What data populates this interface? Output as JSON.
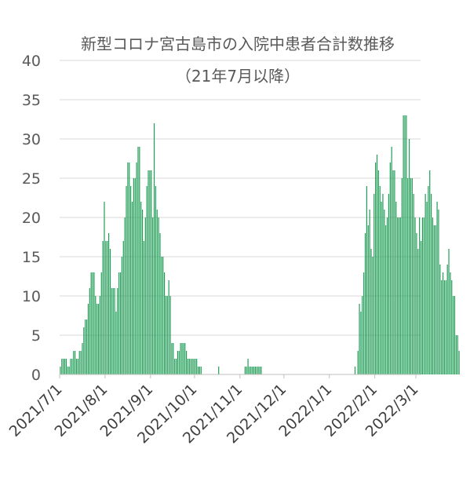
{
  "chart_data": {
    "type": "bar",
    "title": "新型コロナ宮古島市の入院中患者合計数推移",
    "subtitle": "（21年7月以降）",
    "xlabel": "",
    "ylabel": "",
    "ylim": [
      0,
      40
    ],
    "yticks": [
      "0",
      "5",
      "10",
      "15",
      "20",
      "25",
      "30",
      "35",
      "40"
    ],
    "grid": true,
    "legend": "none",
    "color": "#1a9a52",
    "start_date": "2021-07-01",
    "xticks": [
      {
        "date": "2021-07-01",
        "label": "2021/7/1"
      },
      {
        "date": "2021-08-01",
        "label": "2021/8/1"
      },
      {
        "date": "2021-09-01",
        "label": "2021/9/1"
      },
      {
        "date": "2021-10-01",
        "label": "2021/10/1"
      },
      {
        "date": "2021-11-01",
        "label": "2021/11/1"
      },
      {
        "date": "2021-12-01",
        "label": "2021/12/1"
      },
      {
        "date": "2022-01-01",
        "label": "2022/1/1"
      },
      {
        "date": "2022-02-01",
        "label": "2022/2/1"
      },
      {
        "date": "2022-03-01",
        "label": "2022/3/1"
      }
    ],
    "values": [
      1,
      2,
      2,
      2,
      2,
      1,
      1,
      2,
      2,
      3,
      3,
      2,
      2,
      3,
      3,
      4,
      6,
      7,
      7,
      9,
      11,
      13,
      13,
      13,
      10,
      9,
      9,
      10,
      13,
      17,
      22,
      17,
      17,
      18,
      16,
      11,
      11,
      11,
      8,
      11,
      13,
      13,
      15,
      17,
      20,
      24,
      27,
      27,
      24,
      22,
      25,
      25,
      27,
      29,
      29,
      22,
      21,
      17,
      20,
      24,
      26,
      26,
      26,
      20,
      32,
      24,
      21,
      20,
      18,
      15,
      15,
      13,
      10,
      10,
      12,
      10,
      4,
      4,
      2,
      2,
      3,
      3,
      4,
      4,
      4,
      4,
      3,
      2,
      2,
      2,
      2,
      2,
      2,
      2,
      1,
      1,
      1,
      0,
      0,
      0,
      0,
      0,
      0,
      0,
      0,
      0,
      0,
      0,
      1,
      0,
      0,
      0,
      0,
      0,
      0,
      0,
      0,
      0,
      0,
      0,
      0,
      0,
      0,
      0,
      0,
      0,
      1,
      1,
      2,
      1,
      1,
      1,
      1,
      1,
      1,
      1,
      1,
      1,
      0,
      0,
      0,
      0,
      0,
      0,
      0,
      0,
      0,
      0,
      0,
      0,
      0,
      0,
      0,
      0,
      0,
      0,
      0,
      0,
      0,
      0,
      0,
      0,
      0,
      0,
      0,
      0,
      0,
      0,
      0,
      0,
      0,
      0,
      0,
      0,
      0,
      0,
      0,
      0,
      0,
      0,
      0,
      0,
      0,
      0,
      0,
      0,
      0,
      0,
      0,
      0,
      0,
      0,
      0,
      0,
      0,
      0,
      0,
      0,
      0,
      0,
      0,
      1,
      0,
      3,
      9,
      8,
      10,
      13,
      18,
      24,
      19,
      21,
      16,
      15,
      23,
      27,
      28,
      26,
      24,
      22,
      23,
      21,
      19,
      20,
      23,
      27,
      29,
      26,
      26,
      22,
      20,
      20,
      20,
      25,
      33,
      33,
      33,
      25,
      30,
      25,
      25,
      23,
      20,
      18,
      16,
      20,
      17,
      20,
      20,
      23,
      22,
      24,
      26,
      23,
      20,
      19,
      19,
      22,
      21,
      14,
      12,
      13,
      12,
      12,
      14,
      16,
      13,
      12,
      10,
      10,
      5,
      5,
      3
    ]
  }
}
